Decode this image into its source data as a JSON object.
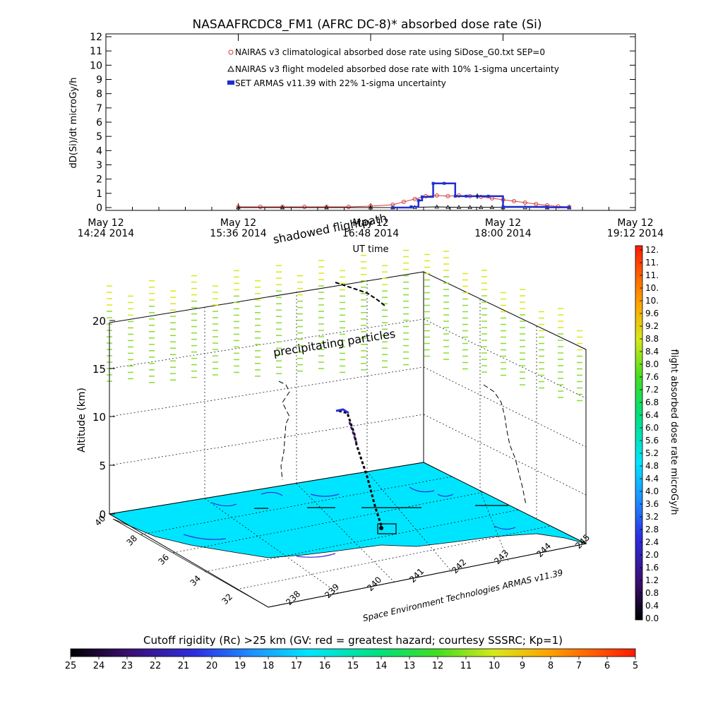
{
  "chart_data": [
    {
      "type": "line",
      "title": "NASAAFRCDC8_FM1 (AFRC DC-8)* absorbed dose rate (Si)",
      "xlabel": "UT time",
      "ylabel": "dD(Si)/dt microGy/h",
      "ylim": [
        0,
        12
      ],
      "y_ticks": [
        "0",
        "1",
        "2",
        "3",
        "4",
        "5",
        "6",
        "7",
        "8",
        "9",
        "10",
        "11",
        "12"
      ],
      "x_ticks": [
        {
          "date": "May 12",
          "time": "14:24 2014"
        },
        {
          "date": "May 12",
          "time": "15:36 2014"
        },
        {
          "date": "May 12",
          "time": "16:48 2014"
        },
        {
          "date": "May 12",
          "time": "18:00 2014"
        },
        {
          "date": "May 12",
          "time": "19:12 2014"
        }
      ],
      "xlim": [
        "14:24",
        "19:12"
      ],
      "legend_position": "top",
      "series": [
        {
          "name": "NAIRAS v3 climatological absorbed dose rate using SiDose_G0.txt SEP=0",
          "color": "#d23c3c",
          "marker": "circle-x",
          "x": [
            "15:36",
            "15:48",
            "16:00",
            "16:12",
            "16:24",
            "16:36",
            "16:48",
            "17:00",
            "17:06",
            "17:12",
            "17:18",
            "17:24",
            "17:30",
            "17:36",
            "17:42",
            "17:48",
            "17:54",
            "18:00",
            "18:06",
            "18:12",
            "18:18",
            "18:24",
            "18:30",
            "18:36"
          ],
          "values": [
            0.05,
            0.05,
            0.05,
            0.05,
            0.05,
            0.05,
            0.1,
            0.2,
            0.4,
            0.6,
            0.8,
            0.85,
            0.8,
            0.85,
            0.8,
            0.75,
            0.65,
            0.55,
            0.45,
            0.35,
            0.25,
            0.15,
            0.08,
            0.05
          ]
        },
        {
          "name": "NAIRAS v3 flight modeled absorbed dose rate with 10% 1-sigma uncertainty",
          "color": "#000000",
          "marker": "triangle",
          "x": [
            "15:36",
            "16:00",
            "16:24",
            "16:48",
            "17:00",
            "17:12",
            "17:24",
            "17:30",
            "17:36",
            "17:42",
            "17:48",
            "17:54",
            "18:00",
            "18:12",
            "18:24",
            "18:36"
          ],
          "values": [
            0.0,
            0.0,
            0.0,
            0.0,
            0.0,
            0.02,
            0.05,
            0.03,
            0.02,
            0.02,
            0.02,
            0.02,
            0.01,
            0.01,
            0.0,
            0.0
          ]
        },
        {
          "name": "SET ARMAS v11.39 with 22% 1-sigma uncertainty",
          "color": "#1f2fcf",
          "marker": "square",
          "x": [
            "17:00",
            "17:10",
            "17:14",
            "17:16",
            "17:22",
            "17:28",
            "17:34",
            "17:40",
            "17:46",
            "17:52",
            "18:00",
            "18:24",
            "18:36"
          ],
          "values": [
            0.0,
            0.05,
            0.5,
            0.75,
            1.7,
            1.7,
            0.8,
            0.8,
            0.8,
            0.8,
            0.05,
            0.02,
            0.0
          ]
        }
      ]
    },
    {
      "type": "3d-flight-track",
      "zlabel": "Altitude (km)",
      "z_ticks": [
        "0",
        "5",
        "10",
        "15",
        "20"
      ],
      "lat_ticks": [
        "40",
        "38",
        "36",
        "34",
        "32"
      ],
      "lon_ticks": [
        "238",
        "239",
        "240",
        "241",
        "242",
        "243",
        "244",
        "245"
      ],
      "annotations": [
        "shadowed flightpath",
        "precipitating particles"
      ],
      "credit": "Space Environment Technologies ARMAS v11.39",
      "ground_color": "#00e5ff",
      "particles_color": "#c9e84a"
    },
    {
      "type": "colorbar",
      "label": "flight absorbed dose rate microGy/h",
      "ticks": [
        "0.0",
        "0.4",
        "0.8",
        "1.2",
        "1.6",
        "2.0",
        "2.4",
        "2.8",
        "3.2",
        "3.6",
        "4.0",
        "4.4",
        "4.8",
        "5.2",
        "5.6",
        "6.0",
        "6.4",
        "6.8",
        "7.2",
        "7.6",
        "8.0",
        "8.4",
        "8.8",
        "9.2",
        "9.6",
        "10.",
        "10.",
        "11.",
        "11.",
        "12."
      ],
      "range": [
        0,
        12
      ]
    },
    {
      "type": "colorbar",
      "label": "Cutoff rigidity (Rc) >25 km (GV: red = greatest hazard; courtesy SSSRC; Kp=1)",
      "ticks": [
        "25",
        "24",
        "23",
        "22",
        "21",
        "20",
        "19",
        "18",
        "17",
        "16",
        "15",
        "14",
        "13",
        "12",
        "11",
        "10",
        "9",
        "8",
        "7",
        "6",
        "5"
      ],
      "range": [
        25,
        5
      ]
    }
  ]
}
